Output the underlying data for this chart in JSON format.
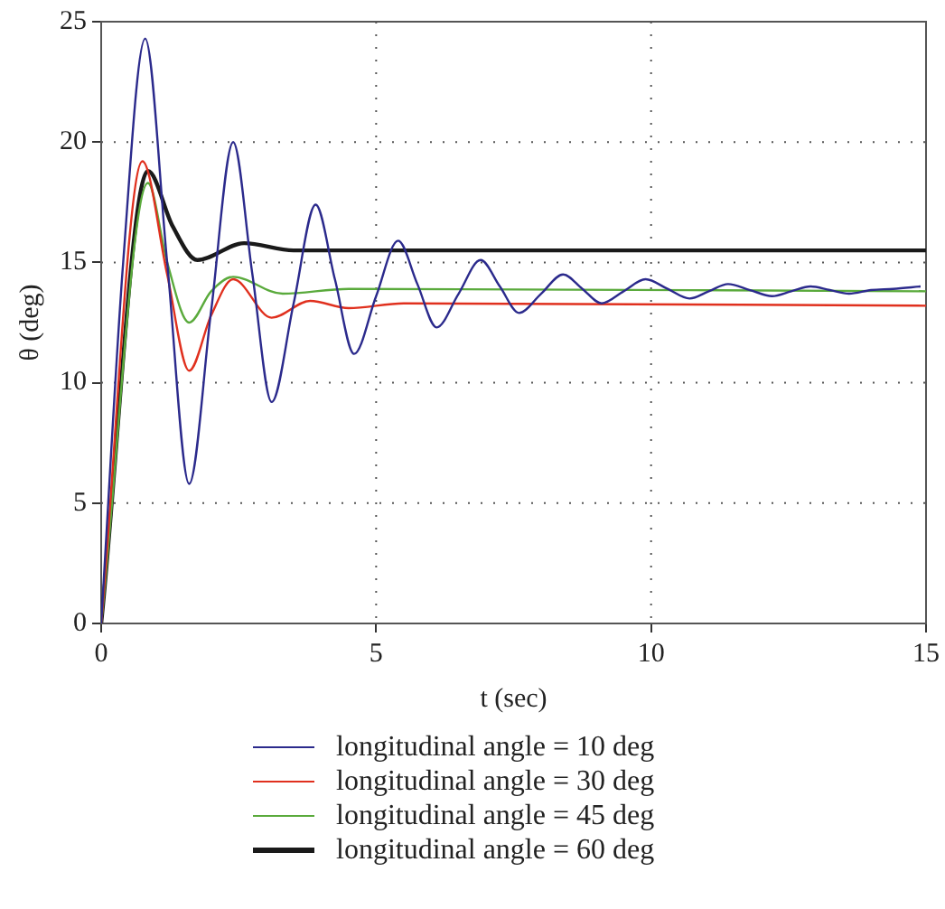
{
  "chart_data": {
    "type": "line",
    "xlabel": "t (sec)",
    "ylabel": "θ (deg)",
    "xlim": [
      0,
      15
    ],
    "xticks": [
      0,
      5,
      10,
      15
    ],
    "ylim": [
      0,
      25
    ],
    "yticks": [
      0,
      5,
      10,
      15,
      20,
      25
    ],
    "grid": true,
    "legend": "bottom",
    "marker": "none",
    "line_style": "solid",
    "series": [
      {
        "name": "longitudinal angle = 10 deg",
        "color": "#2b2a8c",
        "x": [
          0,
          0.4,
          0.8,
          1.2,
          1.6,
          2.0,
          2.4,
          2.75,
          3.1,
          3.5,
          3.9,
          4.25,
          4.6,
          5.0,
          5.4,
          5.75,
          6.1,
          6.5,
          6.9,
          7.25,
          7.6,
          8.0,
          8.4,
          8.75,
          9.1,
          9.5,
          9.9,
          10.3,
          10.7,
          11.05,
          11.4,
          11.8,
          12.2,
          12.55,
          12.9,
          13.25,
          13.6,
          14.0,
          14.4,
          14.9
        ],
        "values": [
          0,
          15,
          24.3,
          15,
          5.8,
          13,
          20,
          14.5,
          9.2,
          13.3,
          17.4,
          14.3,
          11.2,
          13.6,
          15.9,
          14.1,
          12.3,
          13.7,
          15.1,
          14,
          12.9,
          13.7,
          14.5,
          13.9,
          13.3,
          13.8,
          14.3,
          13.9,
          13.5,
          13.8,
          14.1,
          13.85,
          13.6,
          13.8,
          14,
          13.85,
          13.7,
          13.85,
          13.9,
          14
        ]
      },
      {
        "name": "longitudinal angle = 30 deg",
        "color": "#e0301e",
        "x": [
          0,
          0.75,
          1.2,
          1.6,
          2.0,
          2.4,
          3.1,
          3.8,
          4.5,
          5.5,
          15
        ],
        "values": [
          0,
          19.2,
          14.5,
          10.5,
          12.8,
          14.3,
          12.7,
          13.4,
          13.1,
          13.3,
          13.2
        ]
      },
      {
        "name": "longitudinal angle = 45 deg",
        "color": "#5aaa3c",
        "x": [
          0,
          0.85,
          1.2,
          1.6,
          2.0,
          2.4,
          3.3,
          4.5,
          15
        ],
        "values": [
          0,
          18.3,
          15,
          12.5,
          13.8,
          14.4,
          13.7,
          13.9,
          13.8
        ]
      },
      {
        "name": "longitudinal angle = 60 deg",
        "color": "#1a1a1a",
        "x": [
          0,
          0.85,
          1.3,
          1.75,
          2.6,
          3.5,
          15
        ],
        "values": [
          0,
          18.8,
          16.5,
          15.1,
          15.8,
          15.5,
          15.5
        ]
      }
    ]
  }
}
